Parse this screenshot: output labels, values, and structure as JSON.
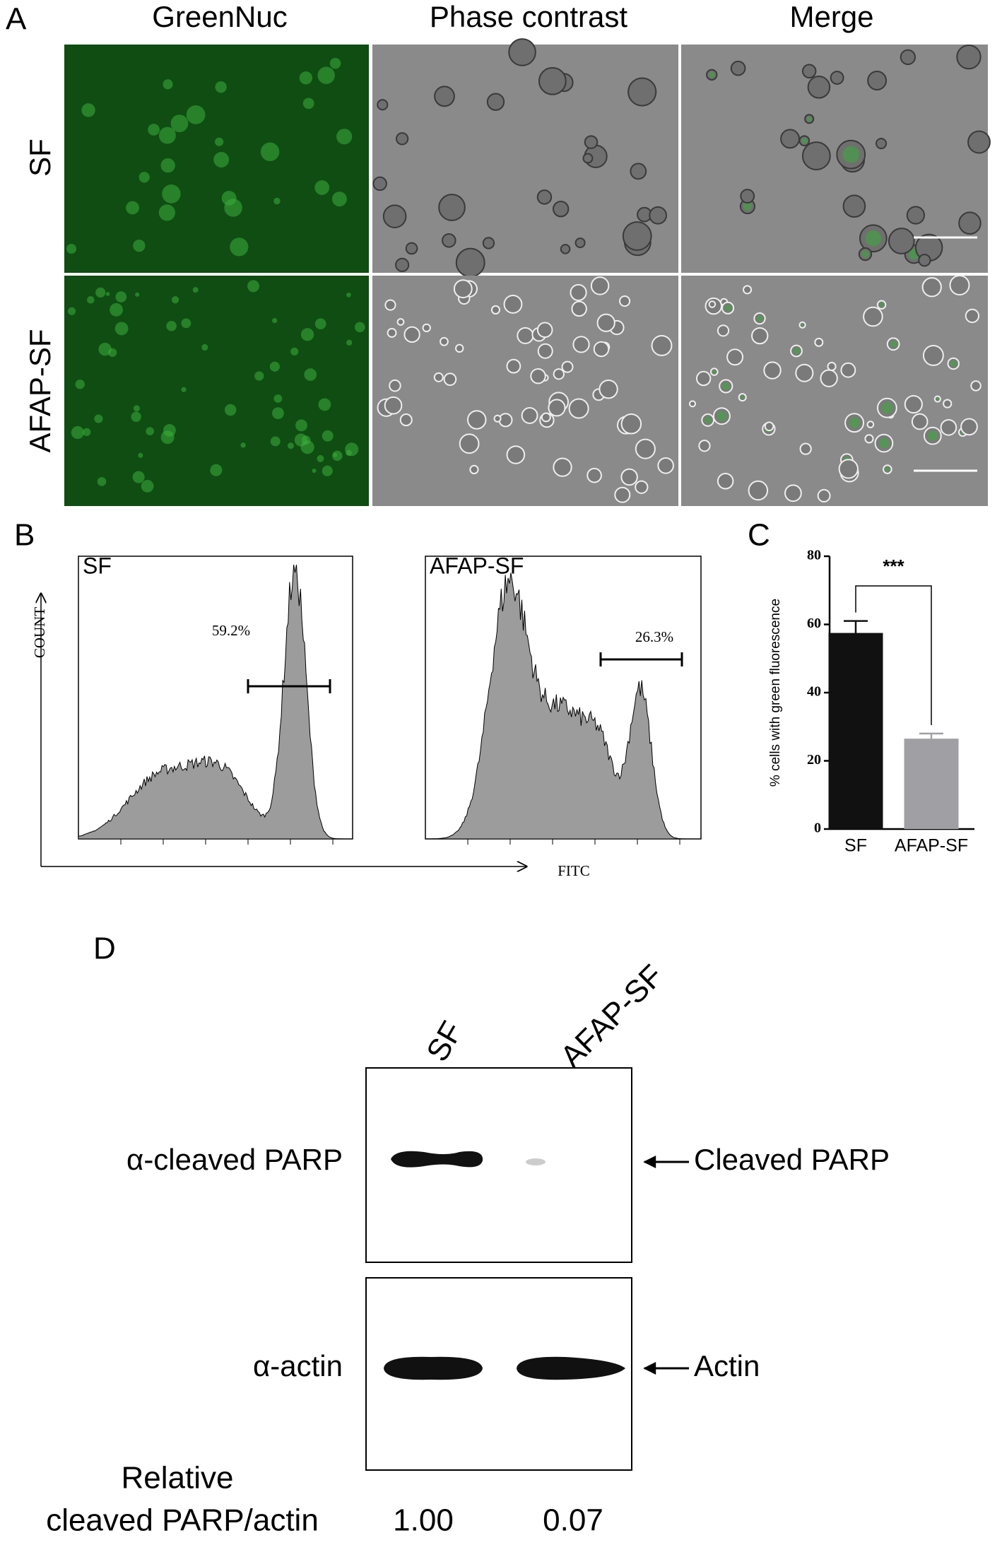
{
  "panel_a": {
    "label": "A",
    "columns": [
      "GreenNuc",
      "Phase contrast",
      "Merge"
    ],
    "rows": [
      "SF",
      "AFAP-SF"
    ]
  },
  "panel_b": {
    "label": "B",
    "y_label": "COUNT",
    "x_label": "FITC",
    "histograms": [
      {
        "name": "SF",
        "gate": "59.2%"
      },
      {
        "name": "AFAP-SF",
        "gate": "26.3%"
      }
    ]
  },
  "chart_data": {
    "type": "bar",
    "panel_label": "C",
    "y_label": "% cells with green fluorescence",
    "categories": [
      "SF",
      "AFAP-SF"
    ],
    "values": [
      57.5,
      26.5
    ],
    "errors": [
      3.5,
      1.5
    ],
    "colors": [
      "#111111",
      "#a0a0a4"
    ],
    "ylim": [
      0,
      80
    ],
    "yticks": [
      0,
      20,
      40,
      60,
      80
    ],
    "annotation": "***"
  },
  "panel_d": {
    "label": "D",
    "lanes": [
      "SF",
      "AFAP-SF"
    ],
    "blots": [
      {
        "antibody": "α-cleaved PARP",
        "target": "Cleaved PARP"
      },
      {
        "antibody": "α-actin",
        "target": "Actin"
      }
    ],
    "quant_label": [
      "Relative",
      "cleaved PARP/actin"
    ],
    "quant_values": [
      "1.00",
      "0.07"
    ]
  }
}
